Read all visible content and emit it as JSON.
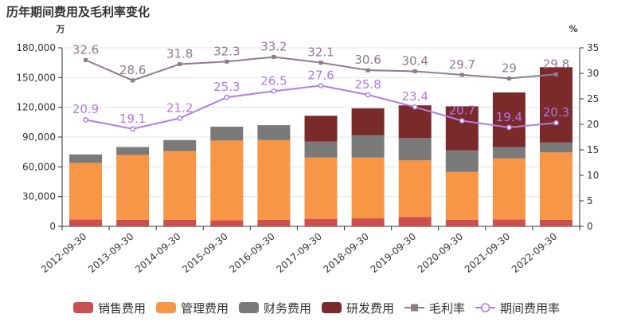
{
  "chart_data": {
    "title": "历年期间费用及毛利率变化",
    "type": "bar",
    "categories": [
      "2012-09-30",
      "2013-09-30",
      "2014-09-30",
      "2015-09-30",
      "2016-09-30",
      "2017-09-30",
      "2018-09-30",
      "2019-09-30",
      "2020-09-30",
      "2021-09-30",
      "2022-09-30"
    ],
    "y_left": {
      "unit": "万",
      "min": 0,
      "max": 180000,
      "ticks": [
        "0",
        "30,000",
        "60,000",
        "90,000",
        "120,000",
        "150,000",
        "180,000"
      ]
    },
    "y_right": {
      "unit": "%",
      "min": 0,
      "max": 35,
      "ticks": [
        "0",
        "5",
        "10",
        "15",
        "20",
        "25",
        "30",
        "35"
      ]
    },
    "bar_series": [
      {
        "name": "销售费用",
        "color": "#c9504e",
        "values": [
          7000,
          6500,
          6500,
          6000,
          6500,
          7500,
          8000,
          9500,
          6500,
          7000,
          6500
        ]
      },
      {
        "name": "管理费用",
        "color": "#f79646",
        "values": [
          57000,
          65500,
          69500,
          80500,
          80500,
          62000,
          61500,
          57000,
          48500,
          61500,
          68000
        ]
      },
      {
        "name": "财务费用",
        "color": "#7a7a7a",
        "values": [
          8500,
          8000,
          11000,
          14000,
          15000,
          16000,
          22500,
          22500,
          21500,
          11500,
          10000
        ]
      },
      {
        "name": "研发费用",
        "color": "#7b2a2a",
        "values": [
          0,
          0,
          0,
          0,
          0,
          26000,
          27000,
          33000,
          44500,
          55000,
          76000
        ]
      }
    ],
    "line_series": [
      {
        "name": "毛利率",
        "color": "#8e7a8e",
        "marker": "square",
        "values": [
          32.6,
          28.6,
          31.8,
          32.3,
          33.2,
          32.1,
          30.6,
          30.4,
          29.7,
          29,
          29.8
        ],
        "labels": [
          "32.6",
          "28.6",
          "31.8",
          "32.3",
          "33.2",
          "32.1",
          "30.6",
          "30.4",
          "29.7",
          "29",
          "29.8"
        ]
      },
      {
        "name": "期间费用率",
        "color": "#b07be6",
        "marker": "circle",
        "values": [
          20.9,
          19.1,
          21.2,
          25.3,
          26.5,
          27.6,
          25.8,
          23.4,
          20.7,
          19.4,
          20.3
        ],
        "labels": [
          "20.9",
          "19.1",
          "21.2",
          "25.3",
          "26.5",
          "27.6",
          "25.8",
          "23.4",
          "20.7",
          "19.4",
          "20.3"
        ]
      }
    ],
    "legend_placement": "bottom",
    "grid": true
  }
}
